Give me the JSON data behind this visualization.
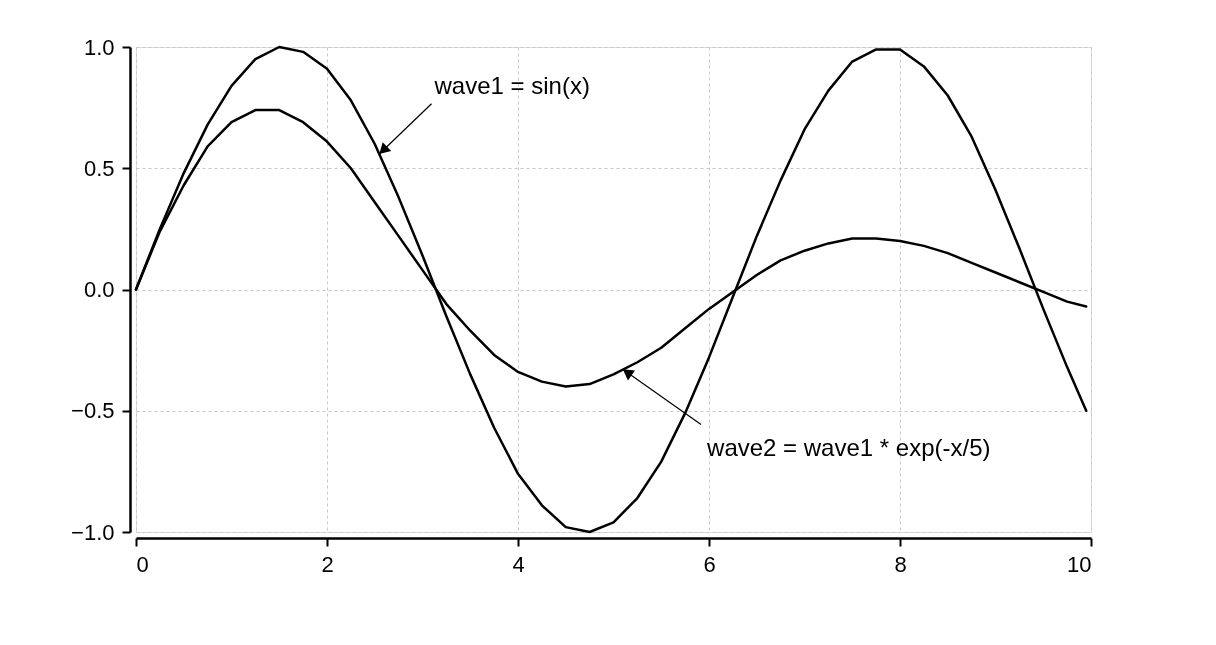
{
  "chart_data": {
    "type": "line",
    "x": [
      0,
      0.25,
      0.5,
      0.75,
      1,
      1.25,
      1.5,
      1.75,
      2,
      2.25,
      2.5,
      2.75,
      3,
      3.25,
      3.5,
      3.75,
      4,
      4.25,
      4.5,
      4.75,
      5,
      5.25,
      5.5,
      5.75,
      6,
      6.25,
      6.5,
      6.75,
      7,
      7.25,
      7.5,
      7.75,
      8,
      8.25,
      8.5,
      8.75,
      9,
      9.25,
      9.5,
      9.75,
      9.95
    ],
    "series": [
      {
        "color": "#000000",
        "values": [
          0,
          0.25,
          0.48,
          0.68,
          0.84,
          0.95,
          1.0,
          0.98,
          0.91,
          0.78,
          0.6,
          0.38,
          0.14,
          -0.11,
          -0.35,
          -0.57,
          -0.76,
          -0.89,
          -0.98,
          -1.0,
          -0.96,
          -0.86,
          -0.71,
          -0.51,
          -0.28,
          -0.03,
          0.22,
          0.45,
          0.66,
          0.82,
          0.94,
          0.99,
          0.99,
          0.92,
          0.8,
          0.63,
          0.41,
          0.17,
          -0.08,
          -0.32,
          -0.5
        ]
      },
      {
        "color": "#000000",
        "values": [
          0,
          0.24,
          0.43,
          0.59,
          0.69,
          0.74,
          0.74,
          0.69,
          0.61,
          0.5,
          0.36,
          0.22,
          0.08,
          -0.06,
          -0.17,
          -0.27,
          -0.34,
          -0.38,
          -0.4,
          -0.39,
          -0.35,
          -0.3,
          -0.24,
          -0.16,
          -0.08,
          -0.01,
          0.06,
          0.12,
          0.16,
          0.19,
          0.21,
          0.21,
          0.2,
          0.18,
          0.15,
          0.11,
          0.07,
          0.03,
          -0.01,
          -0.05,
          -0.07
        ]
      }
    ],
    "xlim": [
      0,
      10
    ],
    "xticks": [
      0,
      2,
      4,
      6,
      8,
      10
    ],
    "ylim": [
      -1.0,
      1.0
    ],
    "yticks": [
      {
        "value": -1,
        "label": "−1.0"
      },
      {
        "value": -0.5,
        "label": "−0.5"
      },
      {
        "value": 0,
        "label": "0.0"
      },
      {
        "value": 0.5,
        "label": "0.5"
      },
      {
        "value": 1,
        "label": "1.0"
      }
    ],
    "annotations": [
      {
        "text": "wave1 = sin(x)",
        "x": 2.55,
        "y": 0.56
      },
      {
        "text": "wave2 = wave1 * exp(-x/5)",
        "x": 5.1,
        "y": -0.33
      }
    ],
    "grid": true,
    "marker": "none",
    "line_style": "solid"
  }
}
